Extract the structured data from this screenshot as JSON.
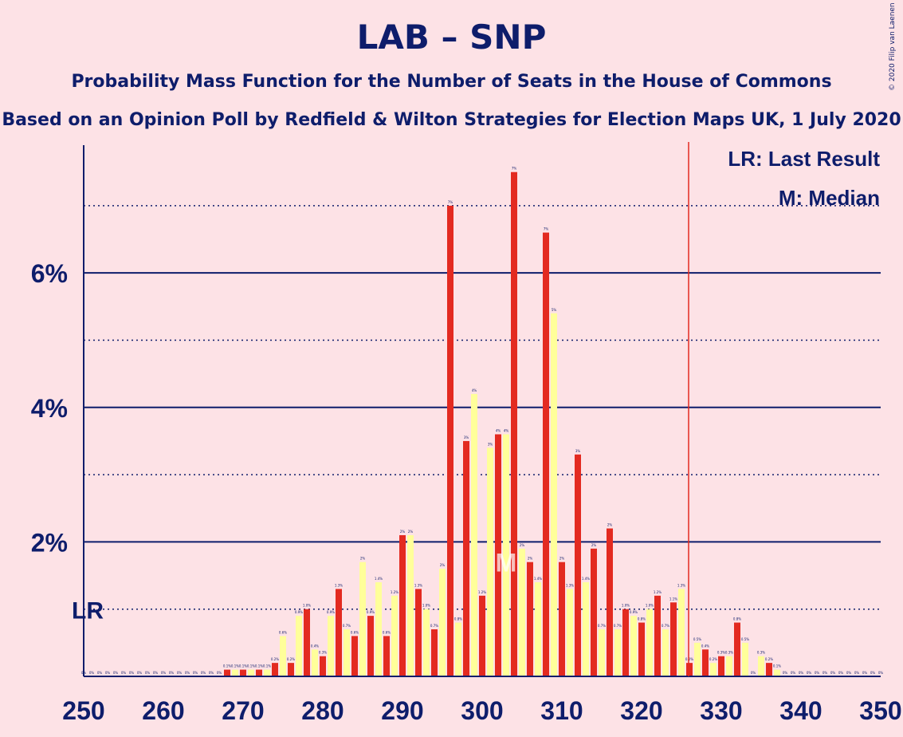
{
  "title": "LAB – SNP",
  "subtitle": "Probability Mass Function for the Number of Seats in the House of Commons",
  "subtitle2": "Based on an Opinion Poll by Redfield & Wilton Strategies for Election Maps UK, 1 July 2020",
  "copyright": "© 2020 Filip van Laenen",
  "legend": {
    "lr": "LR: Last Result",
    "median": "M: Median"
  },
  "colors": {
    "bg": "#fde2e6",
    "axis": "#0e1d6b",
    "red": "#e32a20",
    "yellow": "#ffff9a",
    "lr_line": "#e32a20"
  },
  "chart_data": {
    "type": "bar",
    "xlim": [
      250,
      350
    ],
    "ylim": [
      0,
      7.9
    ],
    "x_ticks": [
      "250",
      "260",
      "270",
      "280",
      "290",
      "300",
      "310",
      "320",
      "330",
      "340",
      "350"
    ],
    "y_ticks": [
      {
        "value": 2,
        "label": "2%"
      },
      {
        "value": 4,
        "label": "4%"
      },
      {
        "value": 6,
        "label": "6%"
      }
    ],
    "y_dotted": [
      1,
      3,
      5,
      7
    ],
    "last_result_seats": 326,
    "last_result_label": "LR",
    "median_seats": 303,
    "median_label": "M",
    "series": [
      {
        "name": "Red",
        "x": [
          250,
          252,
          254,
          256,
          258,
          260,
          262,
          264,
          266,
          268,
          270,
          272,
          274,
          276,
          278,
          280,
          282,
          284,
          286,
          288,
          290,
          292,
          294,
          296,
          298,
          300,
          302,
          304,
          306,
          308,
          310,
          312,
          314,
          316,
          318,
          320,
          322,
          324,
          326,
          328,
          330,
          332,
          334,
          336,
          338,
          340,
          342,
          344,
          346,
          348,
          350
        ],
        "values": [
          0.0,
          0.0,
          0.0,
          0.0,
          0.0,
          0.0,
          0.0,
          0.0,
          0.0,
          0.1,
          0.1,
          0.1,
          0.2,
          0.2,
          1.0,
          0.3,
          1.3,
          0.6,
          0.9,
          0.6,
          2.1,
          1.3,
          0.7,
          7.0,
          3.5,
          1.2,
          3.6,
          7.5,
          1.7,
          6.6,
          1.7,
          3.3,
          1.9,
          2.2,
          1.0,
          0.8,
          1.2,
          1.1,
          0.2,
          0.4,
          0.3,
          0.8,
          0.0,
          0.2,
          0.0,
          0.0,
          0.0,
          0.0,
          0.0,
          0.0,
          0.0
        ],
        "labels": [
          "0%",
          "0%",
          "0%",
          "0%",
          "0%",
          "0%",
          "0%",
          "0%",
          "0%",
          "0.1%",
          "0.1%",
          "0.1%",
          "0.2%",
          "0.2%",
          "1.0%",
          "0.3%",
          "1.3%",
          "0.6%",
          "0.9%",
          "0.6%",
          "2%",
          "1.3%",
          "0.7%",
          "7%",
          "3%",
          "1.2%",
          "4%",
          "7%",
          "2%",
          "7%",
          "2%",
          "3%",
          "2%",
          "2%",
          "1.0%",
          "0.8%",
          "1.2%",
          "1.1%",
          "0.2%",
          "0.4%",
          "0.3%",
          "0.8%",
          "0%",
          "0.2%",
          "0%",
          "0%",
          "0%",
          "0%",
          "0%",
          "0%",
          "0%"
        ]
      },
      {
        "name": "Yellow",
        "x": [
          251,
          253,
          255,
          257,
          259,
          261,
          263,
          265,
          267,
          269,
          271,
          273,
          275,
          277,
          279,
          281,
          283,
          285,
          287,
          289,
          291,
          293,
          295,
          297,
          299,
          301,
          303,
          305,
          307,
          309,
          311,
          313,
          315,
          317,
          319,
          321,
          323,
          325,
          327,
          329,
          331,
          333,
          335,
          337,
          339,
          341,
          343,
          345,
          347,
          349
        ],
        "values": [
          0.0,
          0.0,
          0.0,
          0.0,
          0.0,
          0.0,
          0.0,
          0.0,
          0.0,
          0.1,
          0.1,
          0.1,
          0.6,
          0.9,
          0.4,
          0.9,
          0.7,
          1.7,
          1.4,
          1.2,
          2.1,
          1.0,
          1.6,
          0.8,
          4.2,
          3.4,
          3.6,
          1.9,
          1.4,
          5.4,
          1.3,
          1.4,
          0.7,
          0.7,
          0.9,
          1.0,
          0.7,
          1.3,
          0.5,
          0.2,
          0.3,
          0.5,
          0.3,
          0.1,
          0.0,
          0.0,
          0.0,
          0.0,
          0.0,
          0.0
        ],
        "labels": [
          "0%",
          "0%",
          "0%",
          "0%",
          "0%",
          "0%",
          "0%",
          "0%",
          "0%",
          "0.1%",
          "0.1%",
          "0.1%",
          "0.6%",
          "0.9%",
          "0.4%",
          "0.9%",
          "0.7%",
          "2%",
          "1.4%",
          "1.2%",
          "2%",
          "1.0%",
          "2%",
          "0.8%",
          "4%",
          "3%",
          "4%",
          "2%",
          "1.4%",
          "5%",
          "1.3%",
          "1.4%",
          "0.7%",
          "0.7%",
          "0.9%",
          "1.0%",
          "0.7%",
          "1.3%",
          "0.5%",
          "0.2%",
          "0.3%",
          "0.5%",
          "0.3%",
          "0.1%",
          "0%",
          "0%",
          "0%",
          "0%",
          "0%",
          "0%"
        ]
      }
    ]
  }
}
